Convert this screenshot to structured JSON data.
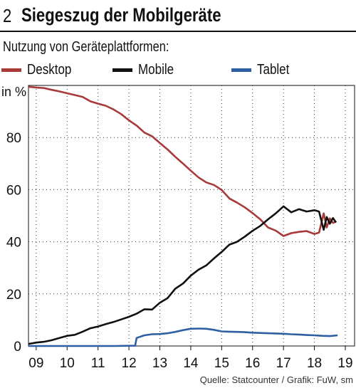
{
  "header": {
    "number": "2",
    "title": "Siegeszug der Mobilgeräte"
  },
  "subtitle": "Nutzung von Geräteplattformen:",
  "legend": [
    {
      "label": "Desktop",
      "color": "#a83a3a"
    },
    {
      "label": "Mobile",
      "color": "#111111"
    },
    {
      "label": "Tablet",
      "color": "#2f5fa3"
    }
  ],
  "source": "Quelle: Statcounter / Grafik: FuW, sm",
  "chart_data": {
    "type": "line",
    "ylabel": "in %",
    "ylim": [
      0,
      100
    ],
    "yticks": [
      0,
      20,
      40,
      60,
      80
    ],
    "xlim": [
      2008.75,
      2019.3
    ],
    "xtick_labels": [
      "09",
      "10",
      "11",
      "12",
      "13",
      "14",
      "15",
      "16",
      "17",
      "18",
      "19"
    ],
    "grid": "dotted vertical and horizontal",
    "series": [
      {
        "name": "Desktop",
        "color": "#a83a3a",
        "points": [
          [
            2008.75,
            99.5
          ],
          [
            2009.0,
            99.2
          ],
          [
            2009.25,
            99.0
          ],
          [
            2009.5,
            98.3
          ],
          [
            2009.75,
            97.7
          ],
          [
            2010.0,
            97.0
          ],
          [
            2010.25,
            96.3
          ],
          [
            2010.5,
            95.6
          ],
          [
            2010.75,
            93.9
          ],
          [
            2011.0,
            93.0
          ],
          [
            2011.25,
            92.2
          ],
          [
            2011.5,
            90.8
          ],
          [
            2011.75,
            89.0
          ],
          [
            2012.0,
            86.6
          ],
          [
            2012.25,
            84.6
          ],
          [
            2012.5,
            81.9
          ],
          [
            2012.75,
            80.5
          ],
          [
            2013.0,
            77.9
          ],
          [
            2013.25,
            75.4
          ],
          [
            2013.5,
            72.6
          ],
          [
            2013.75,
            70.0
          ],
          [
            2014.0,
            67.3
          ],
          [
            2014.25,
            64.7
          ],
          [
            2014.5,
            62.8
          ],
          [
            2014.75,
            61.8
          ],
          [
            2015.0,
            59.9
          ],
          [
            2015.25,
            56.6
          ],
          [
            2015.5,
            55.0
          ],
          [
            2015.75,
            53.2
          ],
          [
            2016.0,
            51.0
          ],
          [
            2016.25,
            48.6
          ],
          [
            2016.5,
            45.5
          ],
          [
            2016.75,
            44.3
          ],
          [
            2017.0,
            42.2
          ],
          [
            2017.25,
            43.3
          ],
          [
            2017.5,
            43.8
          ],
          [
            2017.75,
            44.1
          ],
          [
            2018.0,
            43.0
          ],
          [
            2018.15,
            43.5
          ],
          [
            2018.3,
            50.9
          ],
          [
            2018.4,
            45.5
          ],
          [
            2018.5,
            49.0
          ],
          [
            2018.6,
            47.2
          ],
          [
            2018.7,
            47.8
          ]
        ]
      },
      {
        "name": "Mobile",
        "color": "#111111",
        "points": [
          [
            2008.75,
            0.8
          ],
          [
            2009.0,
            1.3
          ],
          [
            2009.25,
            1.6
          ],
          [
            2009.5,
            2.2
          ],
          [
            2009.75,
            3.1
          ],
          [
            2010.0,
            3.9
          ],
          [
            2010.25,
            4.3
          ],
          [
            2010.5,
            5.5
          ],
          [
            2010.75,
            6.8
          ],
          [
            2011.0,
            7.5
          ],
          [
            2011.25,
            8.4
          ],
          [
            2011.5,
            9.2
          ],
          [
            2011.75,
            10.2
          ],
          [
            2012.0,
            11.2
          ],
          [
            2012.25,
            12.4
          ],
          [
            2012.5,
            14.1
          ],
          [
            2012.75,
            14.0
          ],
          [
            2013.0,
            16.6
          ],
          [
            2013.25,
            18.4
          ],
          [
            2013.5,
            22.0
          ],
          [
            2013.75,
            24.0
          ],
          [
            2014.0,
            27.0
          ],
          [
            2014.25,
            29.3
          ],
          [
            2014.5,
            30.9
          ],
          [
            2014.75,
            33.6
          ],
          [
            2015.0,
            36.1
          ],
          [
            2015.25,
            38.9
          ],
          [
            2015.5,
            40.0
          ],
          [
            2015.75,
            42.0
          ],
          [
            2016.0,
            44.2
          ],
          [
            2016.25,
            46.1
          ],
          [
            2016.5,
            48.6
          ],
          [
            2016.75,
            50.9
          ],
          [
            2017.0,
            53.6
          ],
          [
            2017.25,
            51.3
          ],
          [
            2017.5,
            52.5
          ],
          [
            2017.75,
            51.6
          ],
          [
            2018.0,
            52.1
          ],
          [
            2018.15,
            51.6
          ],
          [
            2018.3,
            44.6
          ],
          [
            2018.4,
            49.5
          ],
          [
            2018.5,
            46.9
          ],
          [
            2018.6,
            49.1
          ],
          [
            2018.7,
            47.4
          ]
        ]
      },
      {
        "name": "Tablet",
        "color": "#2f5fa3",
        "points": [
          [
            2008.75,
            0.0
          ],
          [
            2009.5,
            0.0
          ],
          [
            2010.5,
            0.0
          ],
          [
            2011.5,
            0.0
          ],
          [
            2012.2,
            0.1
          ],
          [
            2012.25,
            3.1
          ],
          [
            2012.5,
            4.1
          ],
          [
            2012.75,
            4.5
          ],
          [
            2013.0,
            4.6
          ],
          [
            2013.25,
            4.9
          ],
          [
            2013.5,
            5.4
          ],
          [
            2013.75,
            6.1
          ],
          [
            2014.0,
            6.6
          ],
          [
            2014.25,
            6.7
          ],
          [
            2014.5,
            6.6
          ],
          [
            2014.75,
            6.2
          ],
          [
            2015.0,
            5.6
          ],
          [
            2015.25,
            5.5
          ],
          [
            2015.5,
            5.4
          ],
          [
            2015.75,
            5.3
          ],
          [
            2016.0,
            5.1
          ],
          [
            2016.25,
            5.0
          ],
          [
            2016.5,
            4.9
          ],
          [
            2016.75,
            4.8
          ],
          [
            2017.0,
            4.7
          ],
          [
            2017.25,
            4.5
          ],
          [
            2017.5,
            4.4
          ],
          [
            2017.75,
            4.2
          ],
          [
            2018.0,
            4.1
          ],
          [
            2018.25,
            3.9
          ],
          [
            2018.5,
            3.8
          ],
          [
            2018.75,
            4.1
          ]
        ]
      }
    ]
  }
}
